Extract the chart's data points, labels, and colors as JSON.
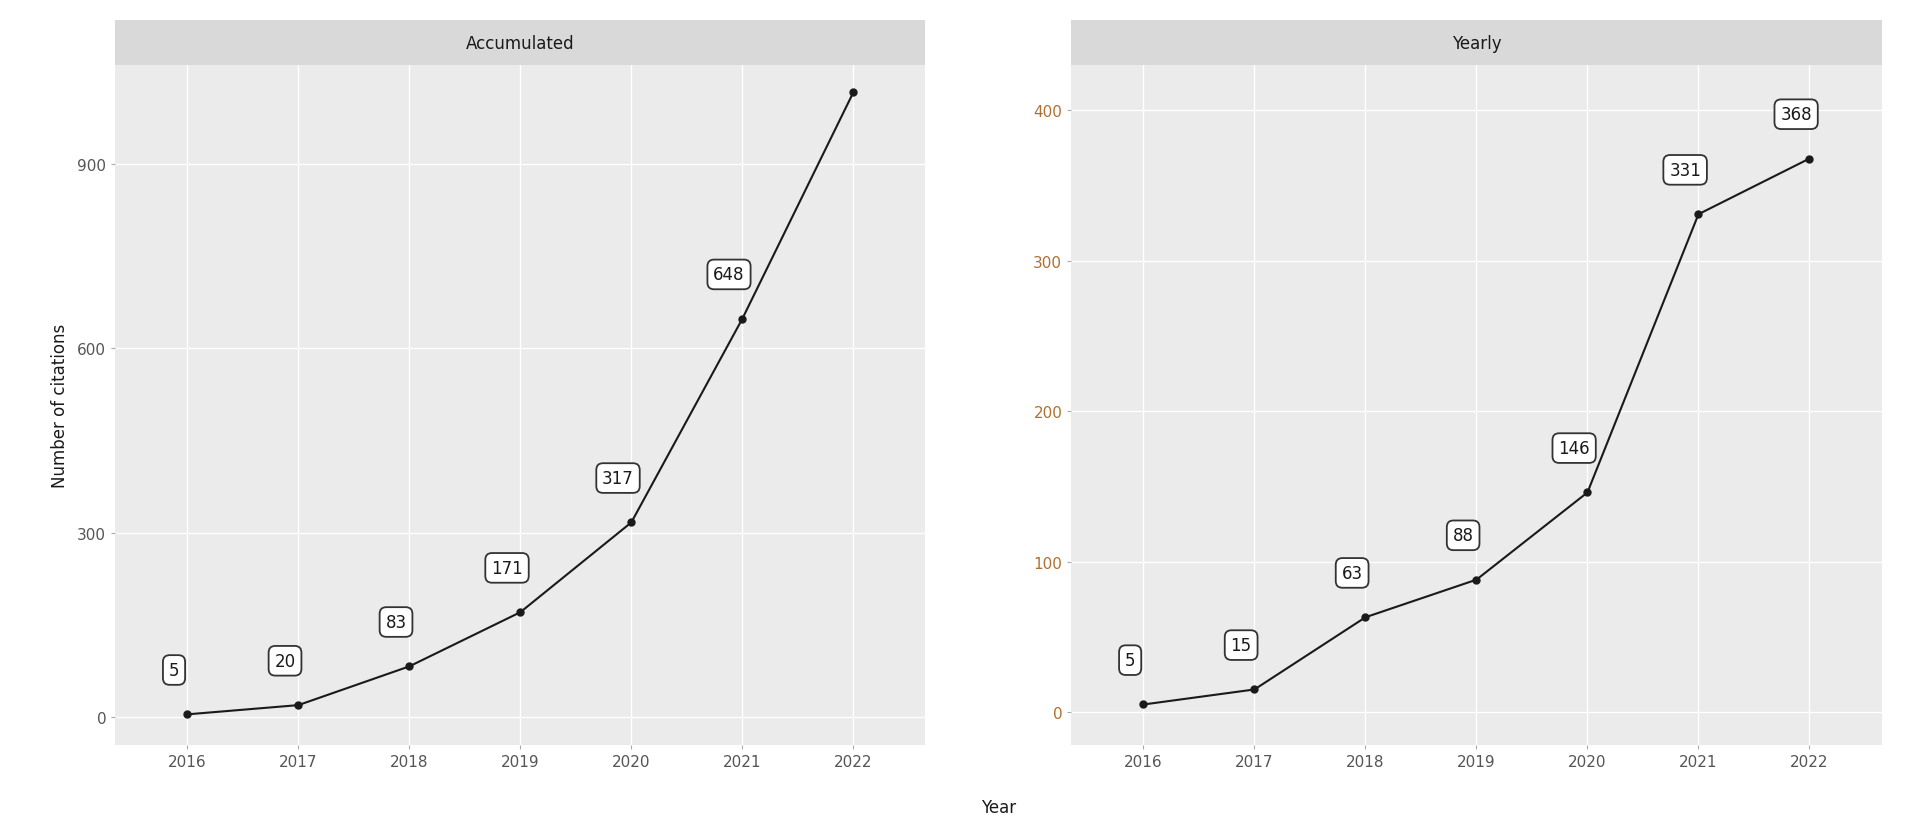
{
  "accumulated": {
    "years": [
      2016,
      2017,
      2018,
      2019,
      2020,
      2021,
      2022
    ],
    "values": [
      5,
      20,
      83,
      171,
      317,
      648,
      1016
    ],
    "title": "Accumulated",
    "ylim": [
      -45,
      1060
    ],
    "yticks": [
      0,
      300,
      600,
      900
    ],
    "ylabel": "Number of citations",
    "ytick_color": "#555555"
  },
  "yearly": {
    "years": [
      2016,
      2017,
      2018,
      2019,
      2020,
      2021,
      2022
    ],
    "values": [
      5,
      15,
      63,
      88,
      146,
      331,
      368
    ],
    "title": "Yearly",
    "ylim": [
      -22,
      430
    ],
    "yticks": [
      0,
      100,
      200,
      300,
      400
    ],
    "ytick_color": "#b07030"
  },
  "xlabel": "Year",
  "fig_bg_color": "#ffffff",
  "panel_bg": "#ebebeb",
  "strip_bg": "#d9d9d9",
  "strip_text_color": "#1a1a1a",
  "line_color": "#1a1a1a",
  "marker_color": "#1a1a1a",
  "annotation_box_facecolor": "#ffffff",
  "annotation_text_color": "#1a1a1a",
  "annotation_edge_color": "#333333",
  "tick_color": "#555555",
  "grid_color": "#ffffff",
  "xlim": [
    2015.35,
    2022.65
  ],
  "xlabel_color": "#1a1a1a",
  "ylabel_color": "#1a1a1a"
}
